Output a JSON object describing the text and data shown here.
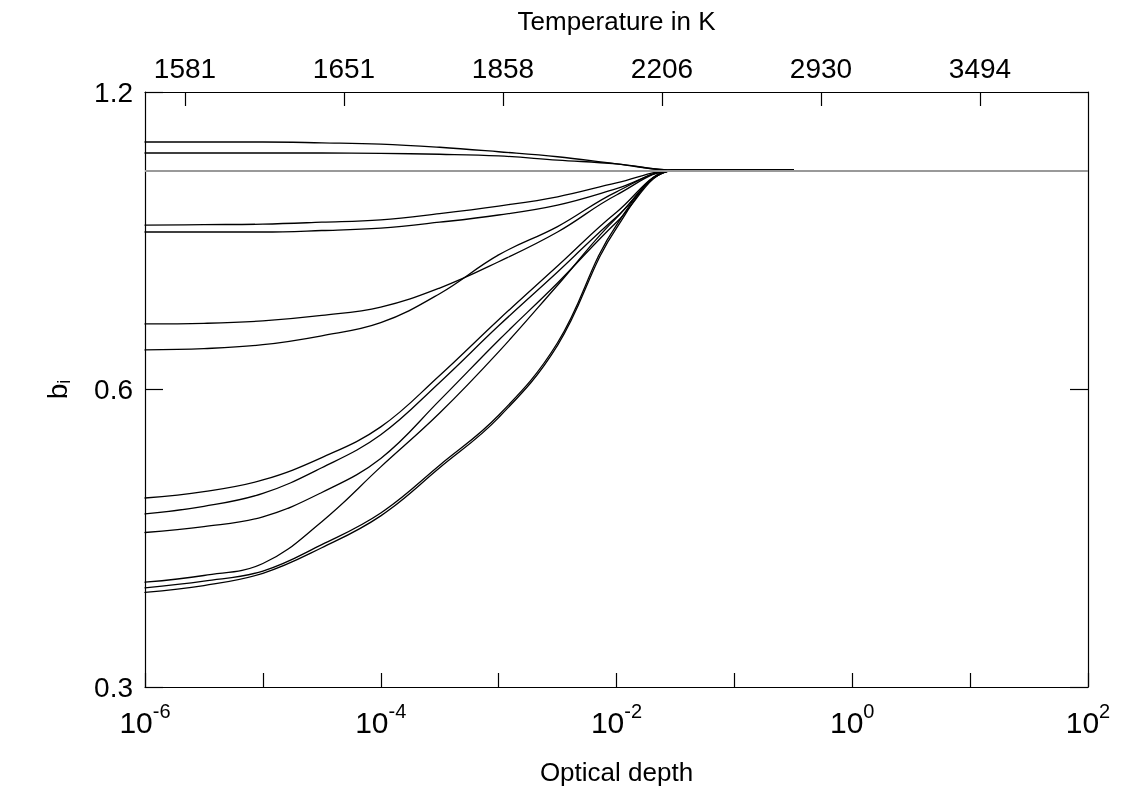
{
  "chart_data": {
    "type": "line",
    "xlabel": "Optical depth",
    "ylabel": "b$_{i}$",
    "x2label": "Temperature in K",
    "annotations": [
      "1581",
      "1651",
      "1858",
      "2206",
      "2930",
      "3494"
    ],
    "x": [
      1e-06,
      3.16e-06,
      1e-05,
      3.16e-05,
      0.0001,
      0.000316,
      0.001,
      0.00316,
      0.01,
      0.0316,
      0.1,
      0.316
    ],
    "log": "xy",
    "xlim": [
      1e-06,
      100
    ],
    "ylim": [
      0.3,
      1.2
    ],
    "xticks": [
      {
        "value": 1e-06,
        "label": "10$^{-6}$"
      },
      {
        "value": 1e-05,
        "label": null
      },
      {
        "value": 0.0001,
        "label": "10$^{-4}$"
      },
      {
        "value": 0.001,
        "label": null
      },
      {
        "value": 0.01,
        "label": "10$^{-2}$"
      },
      {
        "value": 0.1,
        "label": null
      },
      {
        "value": 1,
        "label": "10$^{0}$"
      },
      {
        "value": 10,
        "label": null
      },
      {
        "value": 100,
        "label": "10$^{2}$"
      }
    ],
    "yticks": [
      0.3,
      0.6,
      1.2
    ],
    "grid": false,
    "marker": "none",
    "line_style": "solid",
    "ref_lines": [
      {
        "axis": "y",
        "value": 1.0,
        "color": "#999999"
      }
    ],
    "series": [
      {
        "color": "#000000",
        "values": [
          1.068,
          1.068,
          1.068,
          1.066,
          1.063,
          1.055,
          1.044,
          1.032,
          1.015,
          1.0,
          1.0,
          1.0
        ]
      },
      {
        "color": "#000000",
        "values": [
          1.041,
          1.041,
          1.041,
          1.041,
          1.04,
          1.038,
          1.034,
          1.024,
          1.015,
          1.0,
          1.0,
          1.0
        ]
      },
      {
        "color": "#000000",
        "values": [
          0.88,
          0.881,
          0.882,
          0.886,
          0.891,
          0.904,
          0.92,
          0.94,
          0.971,
          1.0,
          1.0,
          1.0
        ]
      },
      {
        "color": "#000000",
        "values": [
          0.866,
          0.866,
          0.866,
          0.869,
          0.874,
          0.886,
          0.901,
          0.922,
          0.958,
          1.0,
          1.0,
          1.0
        ]
      },
      {
        "color": "#000000",
        "values": [
          0.699,
          0.7,
          0.704,
          0.713,
          0.727,
          0.76,
          0.808,
          0.866,
          0.944,
          1.0,
          1.0,
          1.0
        ]
      },
      {
        "color": "#000000",
        "values": [
          0.658,
          0.66,
          0.666,
          0.68,
          0.701,
          0.75,
          0.821,
          0.877,
          0.951,
          1.0,
          1.0,
          1.0
        ]
      },
      {
        "color": "#000000",
        "values": [
          0.466,
          0.473,
          0.486,
          0.512,
          0.55,
          0.62,
          0.706,
          0.8,
          0.907,
          1.0,
          1.0,
          1.0
        ]
      },
      {
        "color": "#000000",
        "values": [
          0.449,
          0.457,
          0.471,
          0.5,
          0.54,
          0.61,
          0.696,
          0.789,
          0.897,
          1.0,
          1.0,
          1.0
        ]
      },
      {
        "color": "#000000",
        "values": [
          0.43,
          0.436,
          0.446,
          0.472,
          0.511,
          0.585,
          0.673,
          0.769,
          0.886,
          1.0,
          1.0,
          1.0
        ]
      },
      {
        "color": "#000000",
        "values": [
          0.383,
          0.389,
          0.4,
          0.441,
          0.501,
          0.568,
          0.655,
          0.765,
          0.895,
          1.0,
          1.0,
          1.0
        ]
      },
      {
        "color": "#000000",
        "values": [
          0.378,
          0.384,
          0.393,
          0.418,
          0.45,
          0.503,
          0.565,
          0.669,
          0.88,
          1.0,
          1.0,
          1.0
        ]
      },
      {
        "color": "#000000",
        "values": [
          0.374,
          0.38,
          0.391,
          0.415,
          0.447,
          0.5,
          0.562,
          0.665,
          0.874,
          1.0,
          1.0,
          1.0
        ]
      }
    ]
  }
}
